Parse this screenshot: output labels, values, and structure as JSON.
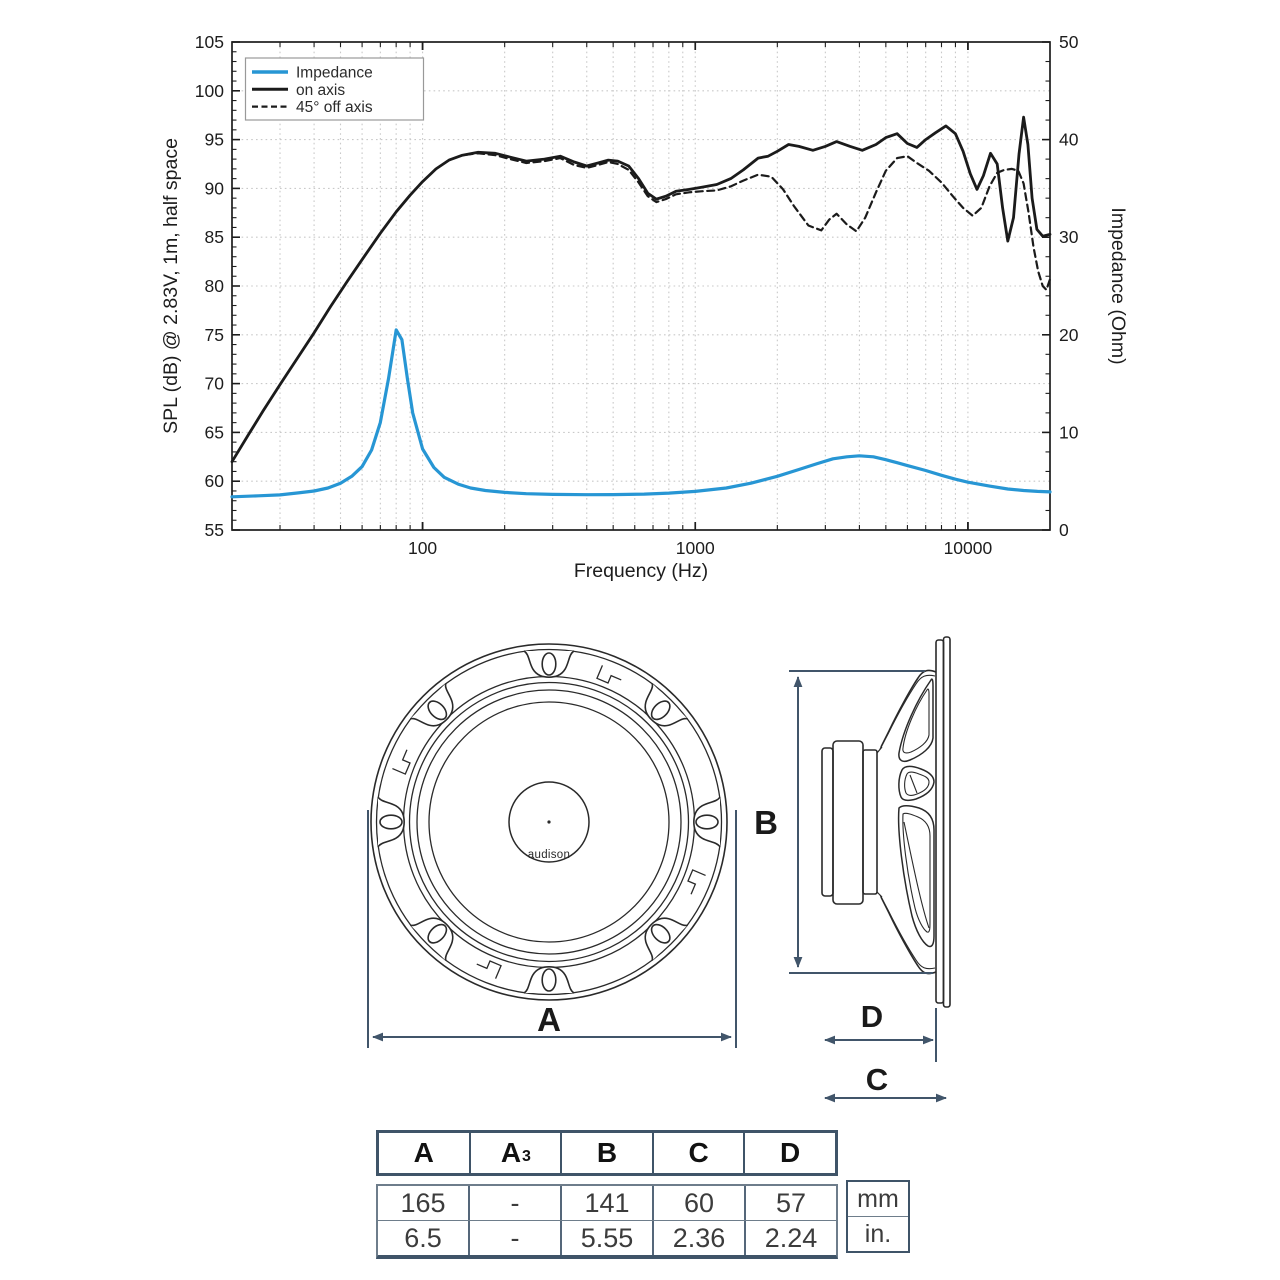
{
  "colors": {
    "impedance_blue": "#2796d4",
    "curve_black": "#1b1b1b",
    "dimension_slate": "#41556a",
    "grid_gray": "#c9c9c9",
    "table_border_slate": "#3f5468"
  },
  "chart_data": {
    "type": "line",
    "title": "",
    "xlabel": "Frequency (Hz)",
    "ylabel_left": "SPL (dB) @ 2.83V, 1m, half space",
    "ylabel_right": "Impedance (Ohm)",
    "x_scale": "log",
    "xlim": [
      20,
      20000
    ],
    "ylim_left": [
      55,
      105
    ],
    "ylim_right": [
      0,
      50
    ],
    "y_left_tick_step": 5,
    "y_right_tick_step": 10,
    "x_tick_labels": [
      "100",
      "1000",
      "10000"
    ],
    "x_tick_values": [
      100,
      1000,
      10000
    ],
    "grid": "dotted",
    "legend_position": "top-left",
    "series": [
      {
        "name": "Impedance",
        "axis": "right",
        "color": "#2796d4",
        "style": "solid",
        "width": 3.2,
        "points": [
          [
            20,
            3.4
          ],
          [
            25,
            3.5
          ],
          [
            30,
            3.6
          ],
          [
            35,
            3.8
          ],
          [
            40,
            4.0
          ],
          [
            45,
            4.3
          ],
          [
            50,
            4.8
          ],
          [
            55,
            5.5
          ],
          [
            60,
            6.5
          ],
          [
            65,
            8.2
          ],
          [
            70,
            11.0
          ],
          [
            75,
            15.5
          ],
          [
            80,
            20.5
          ],
          [
            84,
            19.5
          ],
          [
            88,
            15.5
          ],
          [
            92,
            12.0
          ],
          [
            100,
            8.3
          ],
          [
            110,
            6.4
          ],
          [
            120,
            5.4
          ],
          [
            135,
            4.7
          ],
          [
            150,
            4.3
          ],
          [
            170,
            4.05
          ],
          [
            200,
            3.85
          ],
          [
            240,
            3.72
          ],
          [
            300,
            3.65
          ],
          [
            400,
            3.62
          ],
          [
            500,
            3.63
          ],
          [
            650,
            3.68
          ],
          [
            800,
            3.78
          ],
          [
            1000,
            3.95
          ],
          [
            1300,
            4.3
          ],
          [
            1600,
            4.8
          ],
          [
            2000,
            5.5
          ],
          [
            2400,
            6.2
          ],
          [
            2800,
            6.8
          ],
          [
            3200,
            7.3
          ],
          [
            3600,
            7.5
          ],
          [
            4000,
            7.6
          ],
          [
            4500,
            7.5
          ],
          [
            5000,
            7.2
          ],
          [
            5500,
            6.9
          ],
          [
            6000,
            6.6
          ],
          [
            7000,
            6.1
          ],
          [
            8000,
            5.6
          ],
          [
            9000,
            5.2
          ],
          [
            10000,
            4.9
          ],
          [
            12000,
            4.5
          ],
          [
            14000,
            4.2
          ],
          [
            16000,
            4.05
          ],
          [
            18000,
            3.95
          ],
          [
            20000,
            3.9
          ]
        ]
      },
      {
        "name": "on axis",
        "axis": "left",
        "color": "#1b1b1b",
        "style": "solid",
        "width": 2.8,
        "points": [
          [
            20,
            62
          ],
          [
            23,
            64.8
          ],
          [
            26,
            67.2
          ],
          [
            30,
            69.9
          ],
          [
            34,
            72.2
          ],
          [
            40,
            75.2
          ],
          [
            46,
            77.9
          ],
          [
            53,
            80.5
          ],
          [
            61,
            83
          ],
          [
            70,
            85.4
          ],
          [
            80,
            87.6
          ],
          [
            90,
            89.3
          ],
          [
            100,
            90.7
          ],
          [
            112,
            92
          ],
          [
            125,
            92.9
          ],
          [
            140,
            93.4
          ],
          [
            160,
            93.7
          ],
          [
            185,
            93.6
          ],
          [
            210,
            93.2
          ],
          [
            240,
            92.8
          ],
          [
            280,
            93
          ],
          [
            320,
            93.3
          ],
          [
            360,
            92.7
          ],
          [
            400,
            92.3
          ],
          [
            440,
            92.6
          ],
          [
            480,
            92.9
          ],
          [
            520,
            92.8
          ],
          [
            570,
            92.3
          ],
          [
            620,
            91
          ],
          [
            670,
            89.5
          ],
          [
            720,
            88.9
          ],
          [
            780,
            89.2
          ],
          [
            850,
            89.7
          ],
          [
            950,
            89.9
          ],
          [
            1050,
            90.1
          ],
          [
            1200,
            90.4
          ],
          [
            1350,
            91
          ],
          [
            1500,
            91.9
          ],
          [
            1700,
            93.1
          ],
          [
            1850,
            93.3
          ],
          [
            2000,
            93.8
          ],
          [
            2200,
            94.5
          ],
          [
            2400,
            94.3
          ],
          [
            2700,
            93.9
          ],
          [
            3000,
            94.3
          ],
          [
            3300,
            94.8
          ],
          [
            3700,
            94.3
          ],
          [
            4100,
            93.9
          ],
          [
            4600,
            94.5
          ],
          [
            5000,
            95.2
          ],
          [
            5500,
            95.6
          ],
          [
            6000,
            94.6
          ],
          [
            6500,
            94.2
          ],
          [
            7000,
            95
          ],
          [
            7600,
            95.7
          ],
          [
            8300,
            96.4
          ],
          [
            9000,
            95.6
          ],
          [
            9600,
            93.8
          ],
          [
            10200,
            91.5
          ],
          [
            10800,
            89.9
          ],
          [
            11400,
            91.3
          ],
          [
            12100,
            93.6
          ],
          [
            12800,
            92.5
          ],
          [
            13400,
            88
          ],
          [
            14000,
            84.6
          ],
          [
            14700,
            87
          ],
          [
            15400,
            93.5
          ],
          [
            16000,
            97.3
          ],
          [
            16600,
            94.5
          ],
          [
            17200,
            89
          ],
          [
            17900,
            85.8
          ],
          [
            18800,
            85.1
          ],
          [
            20000,
            85.3
          ]
        ]
      },
      {
        "name": "45° off axis",
        "axis": "left",
        "color": "#1b1b1b",
        "style": "dashed",
        "width": 2.2,
        "points": [
          [
            20,
            62
          ],
          [
            23,
            64.8
          ],
          [
            26,
            67.2
          ],
          [
            30,
            69.9
          ],
          [
            34,
            72.2
          ],
          [
            40,
            75.2
          ],
          [
            46,
            77.9
          ],
          [
            53,
            80.5
          ],
          [
            61,
            83
          ],
          [
            70,
            85.4
          ],
          [
            80,
            87.6
          ],
          [
            90,
            89.3
          ],
          [
            100,
            90.7
          ],
          [
            112,
            92
          ],
          [
            125,
            92.9
          ],
          [
            140,
            93.4
          ],
          [
            160,
            93.6
          ],
          [
            185,
            93.4
          ],
          [
            210,
            93
          ],
          [
            240,
            92.6
          ],
          [
            280,
            92.8
          ],
          [
            320,
            93.1
          ],
          [
            360,
            92.4
          ],
          [
            400,
            92.1
          ],
          [
            440,
            92.4
          ],
          [
            480,
            92.7
          ],
          [
            520,
            92.5
          ],
          [
            570,
            91.9
          ],
          [
            620,
            90.6
          ],
          [
            670,
            89.2
          ],
          [
            720,
            88.6
          ],
          [
            780,
            88.9
          ],
          [
            850,
            89.4
          ],
          [
            950,
            89.6
          ],
          [
            1050,
            89.7
          ],
          [
            1200,
            89.8
          ],
          [
            1350,
            90.2
          ],
          [
            1500,
            90.8
          ],
          [
            1700,
            91.4
          ],
          [
            1900,
            91.2
          ],
          [
            2100,
            89.9
          ],
          [
            2300,
            88.2
          ],
          [
            2600,
            86.2
          ],
          [
            2900,
            85.7
          ],
          [
            3100,
            86.8
          ],
          [
            3300,
            87.4
          ],
          [
            3600,
            86.3
          ],
          [
            3900,
            85.6
          ],
          [
            4200,
            87
          ],
          [
            4600,
            89.6
          ],
          [
            5000,
            91.8
          ],
          [
            5500,
            93.1
          ],
          [
            6000,
            93.3
          ],
          [
            6500,
            92.6
          ],
          [
            7200,
            91.8
          ],
          [
            8000,
            90.6
          ],
          [
            8800,
            89.2
          ],
          [
            9600,
            88
          ],
          [
            10400,
            87.2
          ],
          [
            11200,
            88
          ],
          [
            12000,
            90.2
          ],
          [
            12800,
            91.6
          ],
          [
            13600,
            91.9
          ],
          [
            14500,
            92
          ],
          [
            15300,
            91.8
          ],
          [
            16000,
            90.5
          ],
          [
            16700,
            87.5
          ],
          [
            17400,
            84
          ],
          [
            18100,
            81.5
          ],
          [
            18800,
            80
          ],
          [
            19400,
            79.6
          ],
          [
            20000,
            80.7
          ]
        ]
      }
    ]
  },
  "drawing": {
    "brand": "audison",
    "dim_a": "A",
    "dim_b": "B",
    "dim_c": "C",
    "dim_d": "D"
  },
  "table": {
    "headers": [
      {
        "label": "A",
        "sub": ""
      },
      {
        "label": "A",
        "sub": "3"
      },
      {
        "label": "B",
        "sub": ""
      },
      {
        "label": "C",
        "sub": ""
      },
      {
        "label": "D",
        "sub": ""
      }
    ],
    "rows": [
      {
        "values": [
          "165",
          "-",
          "141",
          "60",
          "57"
        ],
        "unit": "mm"
      },
      {
        "values": [
          "6.5",
          "-",
          "5.55",
          "2.36",
          "2.24"
        ],
        "unit": "in."
      }
    ]
  }
}
